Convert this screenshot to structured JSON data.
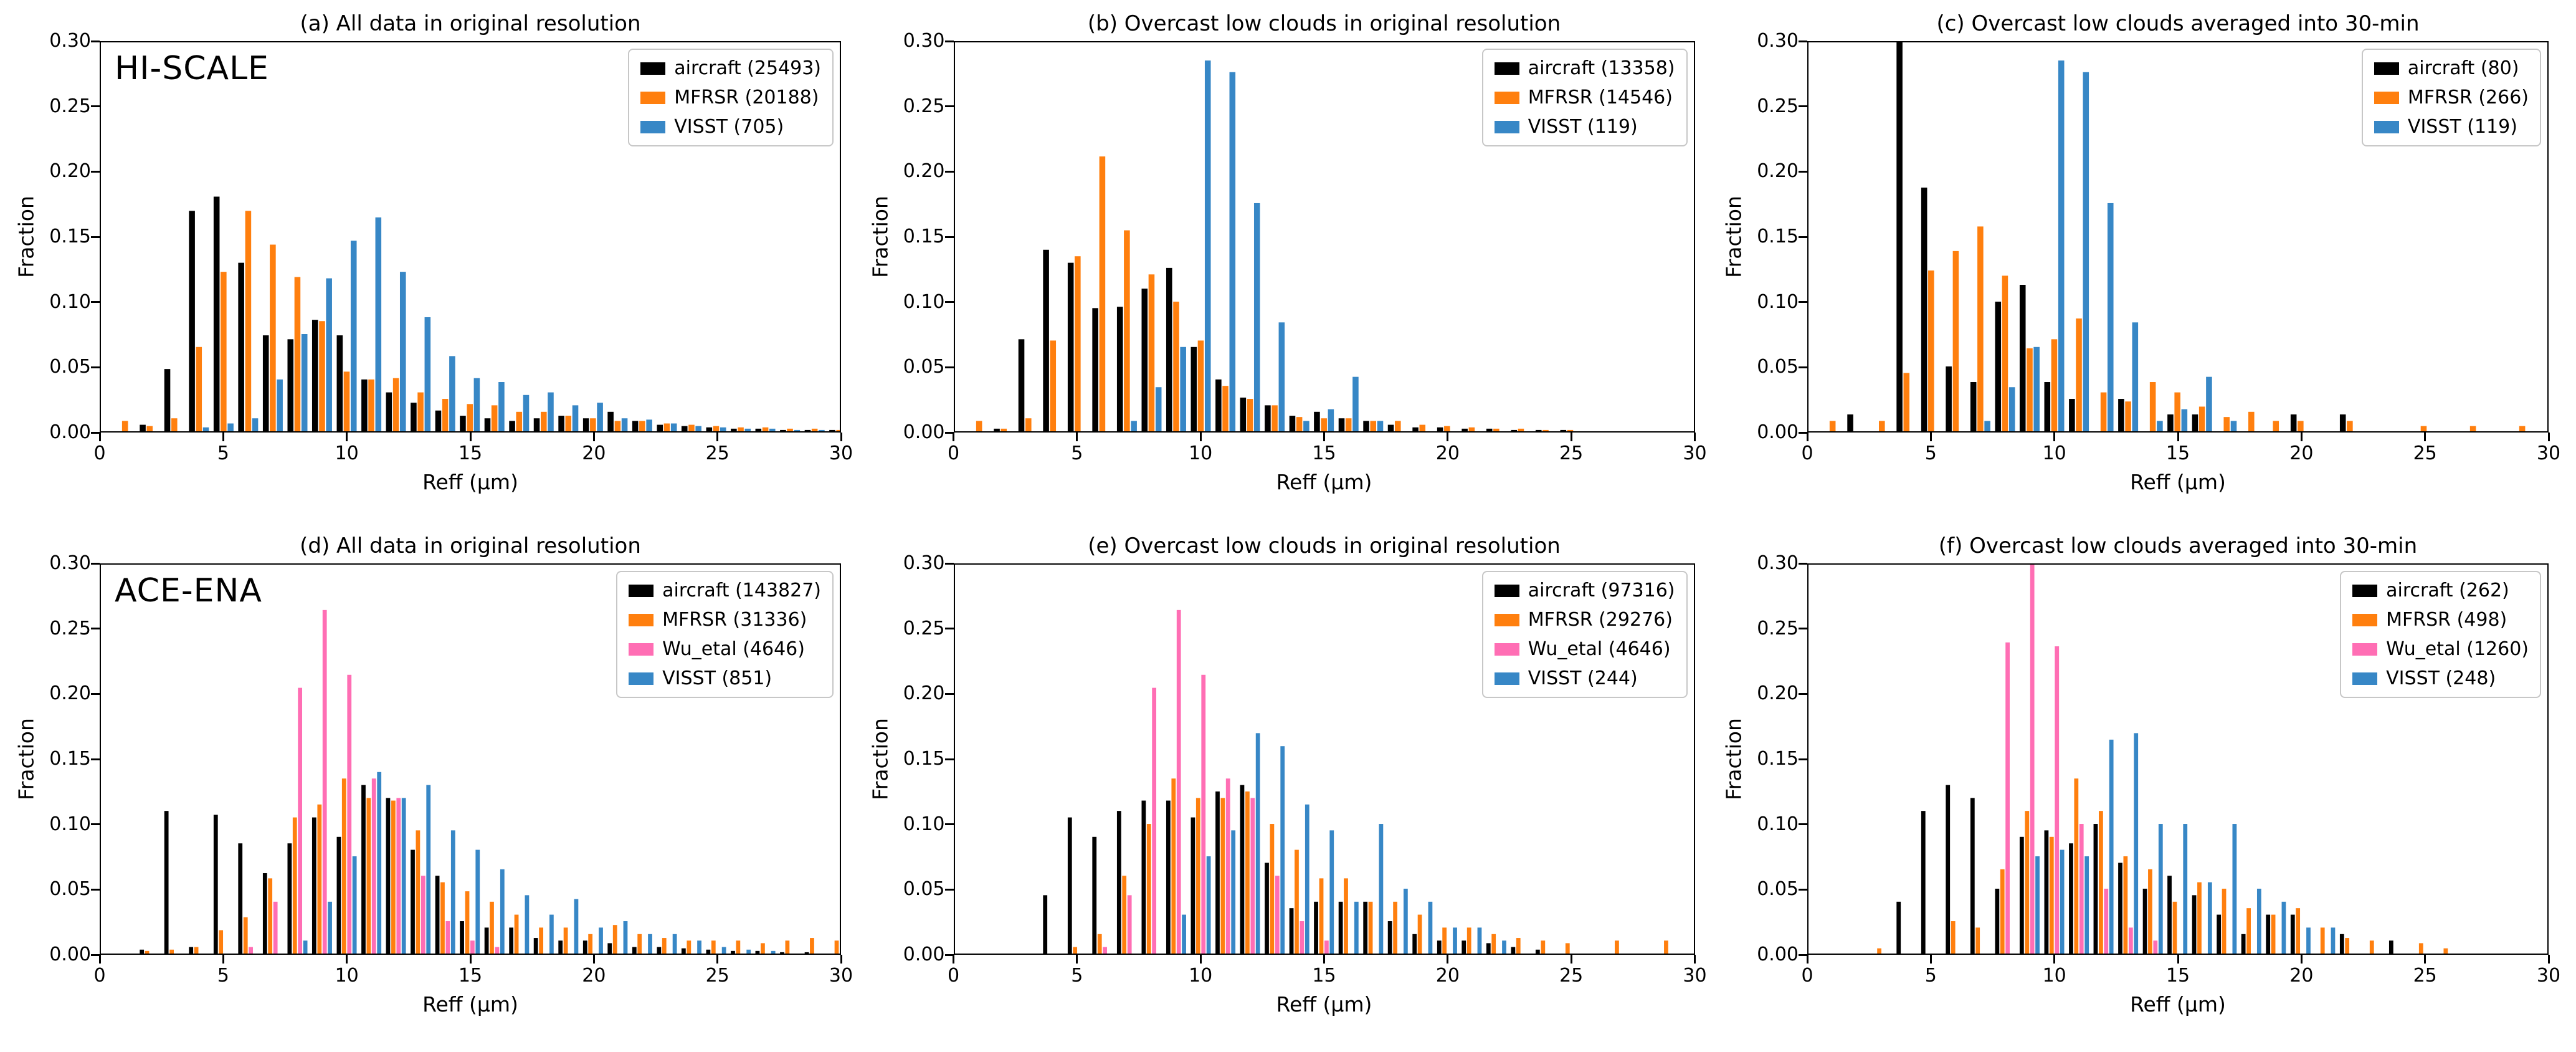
{
  "page": {
    "background": "#ffffff"
  },
  "axis": {
    "ylabel": "Fraction",
    "xlabel": "Reff (μm)",
    "yticks": [
      "0.00",
      "0.05",
      "0.10",
      "0.15",
      "0.20",
      "0.25",
      "0.30"
    ],
    "xticks": [
      "0",
      "5",
      "10",
      "15",
      "20",
      "25",
      "30"
    ]
  },
  "colors": {
    "aircraft": "#000000",
    "MFRSR": "#ff7f0e",
    "Wu_etal": "#ff6eb4",
    "VISST": "#3787c6"
  },
  "chart_data": [
    {
      "type": "bar",
      "title": "(a) All data in original resolution",
      "annotation": "HI-SCALE",
      "xlabel": "Reff (μm)",
      "ylabel": "Fraction",
      "xlim": [
        0,
        30
      ],
      "ylim": [
        0,
        0.3
      ],
      "grid": false,
      "legend_position": "upper right",
      "x": [
        1,
        2,
        3,
        4,
        5,
        6,
        7,
        8,
        9,
        10,
        11,
        12,
        13,
        14,
        15,
        16,
        17,
        18,
        19,
        20,
        21,
        22,
        23,
        24,
        25,
        26,
        27,
        28,
        29,
        30
      ],
      "series": [
        {
          "name": "aircraft (25493)",
          "color": "#000000",
          "values": [
            0,
            0.005,
            0.048,
            0.17,
            0.181,
            0.13,
            0.074,
            0.071,
            0.086,
            0.074,
            0.04,
            0.03,
            0.022,
            0.016,
            0.012,
            0.01,
            0.008,
            0.01,
            0.012,
            0.01,
            0.015,
            0.008,
            0.005,
            0.004,
            0.003,
            0.002,
            0.002,
            0.001,
            0.001,
            0.001
          ]
        },
        {
          "name": "MFRSR (20188)",
          "color": "#ff7f0e",
          "values": [
            0.008,
            0.004,
            0.01,
            0.065,
            0.123,
            0.17,
            0.144,
            0.119,
            0.085,
            0.046,
            0.04,
            0.041,
            0.03,
            0.025,
            0.021,
            0.02,
            0.015,
            0.015,
            0.012,
            0.01,
            0.008,
            0.008,
            0.006,
            0.005,
            0.004,
            0.003,
            0.003,
            0.002,
            0.002,
            0.001
          ]
        },
        {
          "name": "VISST (705)",
          "color": "#3787c6",
          "values": [
            0,
            0,
            0,
            0.003,
            0.006,
            0.01,
            0.04,
            0.075,
            0.118,
            0.147,
            0.165,
            0.123,
            0.088,
            0.058,
            0.041,
            0.038,
            0.028,
            0.03,
            0.02,
            0.022,
            0.01,
            0.009,
            0.006,
            0.004,
            0.003,
            0.002,
            0.002,
            0.001,
            0.001,
            0
          ]
        }
      ]
    },
    {
      "type": "bar",
      "title": "(b) Overcast low clouds in original resolution",
      "annotation": "",
      "xlabel": "Reff (μm)",
      "ylabel": "Fraction",
      "xlim": [
        0,
        30
      ],
      "ylim": [
        0,
        0.3
      ],
      "grid": false,
      "legend_position": "upper right",
      "x": [
        1,
        2,
        3,
        4,
        5,
        6,
        7,
        8,
        9,
        10,
        11,
        12,
        13,
        14,
        15,
        16,
        17,
        18,
        19,
        20,
        21,
        22,
        23,
        24,
        25,
        26,
        27,
        28,
        29,
        30
      ],
      "series": [
        {
          "name": "aircraft (13358)",
          "color": "#000000",
          "values": [
            0,
            0.002,
            0.071,
            0.14,
            0.13,
            0.095,
            0.096,
            0.11,
            0.126,
            0.065,
            0.04,
            0.026,
            0.02,
            0.012,
            0.015,
            0.01,
            0.008,
            0.005,
            0.003,
            0.003,
            0.002,
            0.002,
            0.001,
            0.001,
            0.001,
            0,
            0,
            0,
            0,
            0
          ]
        },
        {
          "name": "MFRSR (14546)",
          "color": "#ff7f0e",
          "values": [
            0.008,
            0.002,
            0.01,
            0.07,
            0.135,
            0.212,
            0.155,
            0.121,
            0.1,
            0.07,
            0.035,
            0.025,
            0.02,
            0.011,
            0.01,
            0.01,
            0.008,
            0.008,
            0.005,
            0.004,
            0.003,
            0.002,
            0.002,
            0.001,
            0.001,
            0,
            0,
            0,
            0,
            0
          ]
        },
        {
          "name": "VISST (119)",
          "color": "#3787c6",
          "values": [
            0,
            0,
            0,
            0,
            0,
            0,
            0.008,
            0.034,
            0.065,
            0.286,
            0.277,
            0.176,
            0.084,
            0.008,
            0.017,
            0.042,
            0.008,
            0,
            0,
            0,
            0,
            0,
            0,
            0,
            0,
            0,
            0,
            0,
            0,
            0
          ]
        }
      ]
    },
    {
      "type": "bar",
      "title": "(c) Overcast low clouds averaged into 30-min",
      "annotation": "",
      "xlabel": "Reff (μm)",
      "ylabel": "Fraction",
      "xlim": [
        0,
        30
      ],
      "ylim": [
        0,
        0.3
      ],
      "grid": false,
      "legend_position": "upper right",
      "x": [
        1,
        2,
        3,
        4,
        5,
        6,
        7,
        8,
        9,
        10,
        11,
        12,
        13,
        14,
        15,
        16,
        17,
        18,
        19,
        20,
        21,
        22,
        23,
        24,
        25,
        26,
        27,
        28,
        29,
        30
      ],
      "series": [
        {
          "name": "aircraft (80)",
          "color": "#000000",
          "values": [
            0,
            0.013,
            0,
            0.3,
            0.188,
            0.05,
            0.038,
            0.1,
            0.113,
            0.038,
            0.025,
            0,
            0.025,
            0,
            0.013,
            0.013,
            0,
            0,
            0,
            0.013,
            0,
            0.013,
            0,
            0,
            0,
            0,
            0,
            0,
            0,
            0
          ]
        },
        {
          "name": "MFRSR (266)",
          "color": "#ff7f0e",
          "values": [
            0.008,
            0,
            0.008,
            0.045,
            0.124,
            0.139,
            0.158,
            0.12,
            0.064,
            0.071,
            0.087,
            0.03,
            0.023,
            0.038,
            0.03,
            0.019,
            0.011,
            0.015,
            0.008,
            0.008,
            0,
            0.008,
            0,
            0,
            0.004,
            0,
            0.004,
            0,
            0.004,
            0
          ]
        },
        {
          "name": "VISST (119)",
          "color": "#3787c6",
          "values": [
            0,
            0,
            0,
            0,
            0,
            0,
            0.008,
            0.034,
            0.065,
            0.286,
            0.277,
            0.176,
            0.084,
            0.008,
            0.017,
            0.042,
            0.008,
            0,
            0,
            0,
            0,
            0,
            0,
            0,
            0,
            0,
            0,
            0,
            0,
            0
          ]
        }
      ]
    },
    {
      "type": "bar",
      "title": "(d) All data in original resolution",
      "annotation": "ACE-ENA",
      "xlabel": "Reff (μm)",
      "ylabel": "Fraction",
      "xlim": [
        0,
        30
      ],
      "ylim": [
        0,
        0.3
      ],
      "grid": false,
      "legend_position": "upper right",
      "x": [
        1,
        2,
        3,
        4,
        5,
        6,
        7,
        8,
        9,
        10,
        11,
        12,
        13,
        14,
        15,
        16,
        17,
        18,
        19,
        20,
        21,
        22,
        23,
        24,
        25,
        26,
        27,
        28,
        29,
        30
      ],
      "series": [
        {
          "name": "aircraft (143827)",
          "color": "#000000",
          "values": [
            0,
            0.003,
            0.11,
            0.005,
            0.107,
            0.085,
            0.062,
            0.085,
            0.105,
            0.09,
            0.13,
            0.12,
            0.08,
            0.06,
            0.025,
            0.02,
            0.02,
            0.012,
            0.01,
            0.01,
            0.008,
            0.005,
            0.005,
            0.004,
            0.003,
            0.002,
            0.002,
            0.001,
            0.001,
            0
          ]
        },
        {
          "name": "MFRSR (31336)",
          "color": "#ff7f0e",
          "values": [
            0,
            0.002,
            0.003,
            0.005,
            0.018,
            0.028,
            0.058,
            0.105,
            0.115,
            0.135,
            0.12,
            0.118,
            0.095,
            0.055,
            0.048,
            0.04,
            0.03,
            0.02,
            0.02,
            0.015,
            0.022,
            0.015,
            0.012,
            0.01,
            0.01,
            0.01,
            0.008,
            0.01,
            0.012,
            0.01
          ]
        },
        {
          "name": "Wu_etal (4646)",
          "color": "#ff6eb4",
          "values": [
            0,
            0,
            0,
            0,
            0,
            0.005,
            0.04,
            0.205,
            0.265,
            0.215,
            0.135,
            0.12,
            0.06,
            0.025,
            0.01,
            0.005,
            0,
            0,
            0,
            0,
            0,
            0,
            0,
            0,
            0,
            0,
            0,
            0,
            0,
            0
          ]
        },
        {
          "name": "VISST (851)",
          "color": "#3787c6",
          "values": [
            0,
            0,
            0,
            0,
            0,
            0,
            0,
            0.01,
            0.04,
            0.075,
            0.14,
            0.12,
            0.13,
            0.095,
            0.08,
            0.065,
            0.045,
            0.03,
            0.042,
            0.02,
            0.025,
            0.015,
            0.015,
            0.01,
            0.005,
            0.003,
            0.002,
            0,
            0,
            0
          ]
        }
      ]
    },
    {
      "type": "bar",
      "title": "(e) Overcast low clouds in original resolution",
      "annotation": "",
      "xlabel": "Reff (μm)",
      "ylabel": "Fraction",
      "xlim": [
        0,
        30
      ],
      "ylim": [
        0,
        0.3
      ],
      "grid": false,
      "legend_position": "upper right",
      "x": [
        1,
        2,
        3,
        4,
        5,
        6,
        7,
        8,
        9,
        10,
        11,
        12,
        13,
        14,
        15,
        16,
        17,
        18,
        19,
        20,
        21,
        22,
        23,
        24,
        25,
        26,
        27,
        28,
        29,
        30
      ],
      "series": [
        {
          "name": "aircraft (97316)",
          "color": "#000000",
          "values": [
            0,
            0,
            0,
            0.045,
            0.105,
            0.09,
            0.11,
            0.118,
            0.118,
            0.105,
            0.125,
            0.13,
            0.07,
            0.035,
            0.04,
            0.04,
            0.04,
            0.025,
            0.015,
            0.01,
            0.01,
            0.008,
            0.005,
            0.003,
            0,
            0,
            0,
            0,
            0,
            0
          ]
        },
        {
          "name": "MFRSR (29276)",
          "color": "#ff7f0e",
          "values": [
            0,
            0,
            0,
            0,
            0.005,
            0.015,
            0.06,
            0.1,
            0.135,
            0.12,
            0.12,
            0.125,
            0.1,
            0.08,
            0.058,
            0.058,
            0.04,
            0.04,
            0.03,
            0.02,
            0.02,
            0.015,
            0.012,
            0.01,
            0.008,
            0,
            0.01,
            0,
            0.01,
            0
          ]
        },
        {
          "name": "Wu_etal (4646)",
          "color": "#ff6eb4",
          "values": [
            0,
            0,
            0,
            0,
            0,
            0.005,
            0.045,
            0.205,
            0.265,
            0.215,
            0.135,
            0.12,
            0.06,
            0.025,
            0.01,
            0,
            0,
            0,
            0,
            0,
            0,
            0,
            0,
            0,
            0,
            0,
            0,
            0,
            0,
            0
          ]
        },
        {
          "name": "VISST (244)",
          "color": "#3787c6",
          "values": [
            0,
            0,
            0,
            0,
            0,
            0,
            0,
            0,
            0.03,
            0.075,
            0.095,
            0.17,
            0.16,
            0.115,
            0.095,
            0.04,
            0.1,
            0.05,
            0.04,
            0.02,
            0.02,
            0.01,
            0,
            0,
            0,
            0,
            0,
            0,
            0,
            0
          ]
        }
      ]
    },
    {
      "type": "bar",
      "title": "(f) Overcast low clouds averaged into 30-min",
      "annotation": "",
      "xlabel": "Reff (μm)",
      "ylabel": "Fraction",
      "xlim": [
        0,
        30
      ],
      "ylim": [
        0,
        0.3
      ],
      "grid": false,
      "legend_position": "upper right",
      "x": [
        1,
        2,
        3,
        4,
        5,
        6,
        7,
        8,
        9,
        10,
        11,
        12,
        13,
        14,
        15,
        16,
        17,
        18,
        19,
        20,
        21,
        22,
        23,
        24,
        25,
        26,
        27,
        28,
        29,
        30
      ],
      "series": [
        {
          "name": "aircraft (262)",
          "color": "#000000",
          "values": [
            0,
            0,
            0,
            0.04,
            0.11,
            0.13,
            0.12,
            0.05,
            0.09,
            0.095,
            0.085,
            0.1,
            0.07,
            0.05,
            0.06,
            0.045,
            0.03,
            0.015,
            0.03,
            0.03,
            0,
            0.015,
            0,
            0.01,
            0,
            0,
            0,
            0,
            0,
            0
          ]
        },
        {
          "name": "MFRSR (498)",
          "color": "#ff7f0e",
          "values": [
            0,
            0,
            0.004,
            0,
            0,
            0.025,
            0.02,
            0.065,
            0.11,
            0.09,
            0.135,
            0.11,
            0.075,
            0.065,
            0.04,
            0.055,
            0.05,
            0.035,
            0.03,
            0.035,
            0.02,
            0.012,
            0.01,
            0,
            0.008,
            0.004,
            0,
            0,
            0,
            0
          ]
        },
        {
          "name": "Wu_etal (1260)",
          "color": "#ff6eb4",
          "values": [
            0,
            0,
            0,
            0,
            0,
            0,
            0,
            0.24,
            0.3,
            0.237,
            0.1,
            0.05,
            0.02,
            0.01,
            0,
            0,
            0,
            0,
            0,
            0,
            0,
            0,
            0,
            0,
            0,
            0,
            0,
            0,
            0,
            0
          ]
        },
        {
          "name": "VISST (248)",
          "color": "#3787c6",
          "values": [
            0,
            0,
            0,
            0,
            0,
            0,
            0,
            0,
            0.075,
            0.08,
            0.075,
            0.165,
            0.17,
            0.1,
            0.1,
            0.055,
            0.1,
            0.05,
            0.04,
            0.02,
            0.02,
            0,
            0,
            0,
            0,
            0,
            0,
            0,
            0,
            0
          ]
        }
      ]
    }
  ]
}
